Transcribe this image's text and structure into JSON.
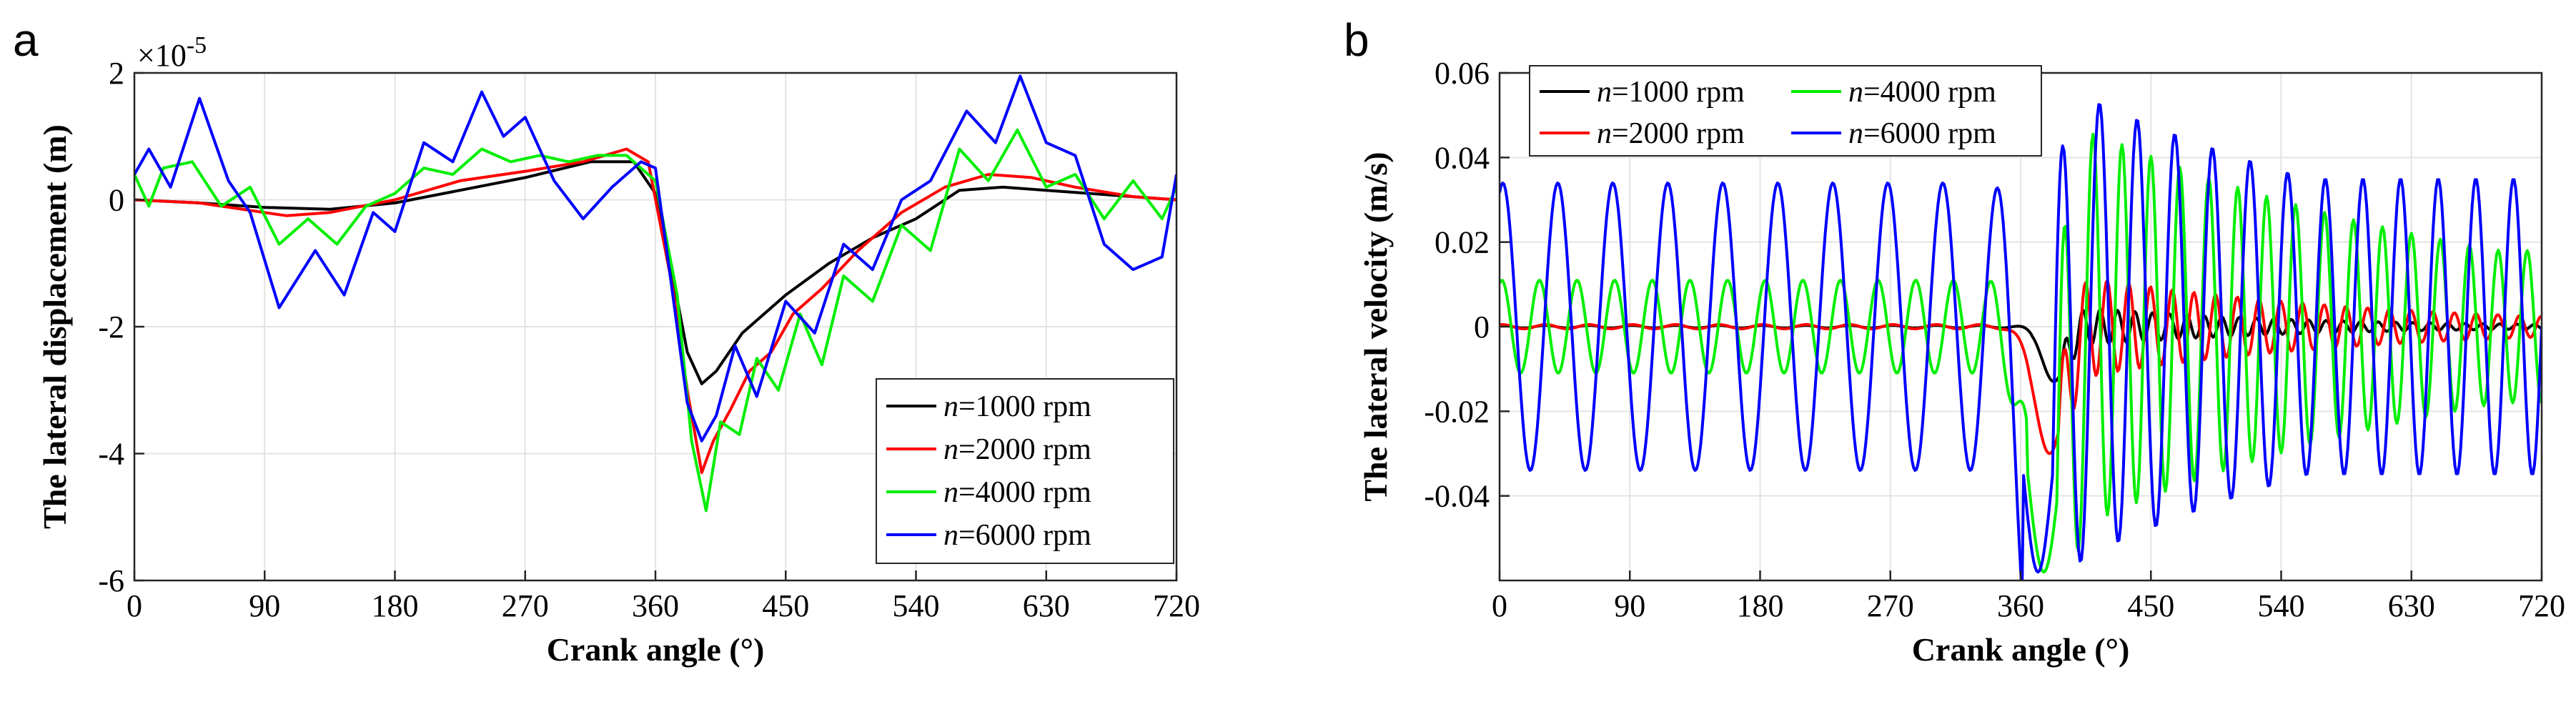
{
  "chart_data": [
    {
      "panel_label": "a",
      "type": "line",
      "xlabel": "Crank angle (°)",
      "ylabel": "The lateral displacement (m)",
      "exponent": "×10",
      "exponent_power": "-5",
      "xlim": [
        0,
        720
      ],
      "ylim": [
        -6,
        2
      ],
      "xticks": [
        "0",
        "90",
        "180",
        "270",
        "360",
        "450",
        "540",
        "630",
        "720"
      ],
      "yticks": [
        "-6",
        "-4",
        "-2",
        "0",
        "2"
      ],
      "grid": true,
      "legend_position": "bottom-right",
      "series": [
        {
          "label_var": "n",
          "label_rest": "=1000 rpm",
          "color": "#000000",
          "x": [
            0,
            45,
            90,
            135,
            180,
            225,
            270,
            315,
            345,
            360,
            372,
            382,
            392,
            402,
            420,
            450,
            480,
            510,
            540,
            570,
            600,
            630,
            660,
            690,
            720
          ],
          "y": [
            0,
            -0.05,
            -0.12,
            -0.15,
            -0.05,
            0.15,
            0.35,
            0.6,
            0.6,
            0.1,
            -1.2,
            -2.4,
            -2.9,
            -2.7,
            -2.1,
            -1.5,
            -1.0,
            -0.6,
            -0.3,
            0.15,
            0.2,
            0.15,
            0.1,
            0.05,
            0
          ]
        },
        {
          "label_var": "n",
          "label_rest": "=2000 rpm",
          "color": "#ff0000",
          "x": [
            0,
            45,
            90,
            105,
            135,
            180,
            225,
            270,
            310,
            340,
            355,
            372,
            382,
            392,
            400,
            412,
            425,
            440,
            455,
            475,
            500,
            530,
            560,
            590,
            620,
            650,
            690,
            720
          ],
          "y": [
            0,
            -0.05,
            -0.2,
            -0.25,
            -0.2,
            0,
            0.3,
            0.45,
            0.6,
            0.8,
            0.6,
            -1.4,
            -3.0,
            -4.3,
            -3.8,
            -3.3,
            -2.7,
            -2.4,
            -1.8,
            -1.4,
            -0.8,
            -0.2,
            0.2,
            0.4,
            0.35,
            0.2,
            0.05,
            0
          ]
        },
        {
          "label_var": "n",
          "label_rest": "=4000 rpm",
          "color": "#00ee00",
          "x": [
            0,
            10,
            20,
            40,
            60,
            80,
            100,
            120,
            140,
            160,
            180,
            200,
            220,
            240,
            260,
            280,
            300,
            320,
            340,
            360,
            375,
            385,
            395,
            405,
            418,
            430,
            445,
            460,
            475,
            490,
            510,
            530,
            550,
            570,
            590,
            610,
            630,
            650,
            670,
            690,
            710,
            720
          ],
          "y": [
            0.4,
            -0.1,
            0.5,
            0.6,
            -0.1,
            0.2,
            -0.7,
            -0.3,
            -0.7,
            -0.1,
            0.1,
            0.5,
            0.4,
            0.8,
            0.6,
            0.7,
            0.6,
            0.7,
            0.7,
            0.3,
            -1.5,
            -3.8,
            -4.9,
            -3.5,
            -3.7,
            -2.5,
            -3.0,
            -1.8,
            -2.6,
            -1.2,
            -1.6,
            -0.4,
            -0.8,
            0.8,
            0.3,
            1.1,
            0.2,
            0.4,
            -0.3,
            0.3,
            -0.3,
            0.2
          ]
        },
        {
          "label_var": "n",
          "label_rest": "=6000 rpm",
          "color": "#0000ff",
          "x": [
            0,
            10,
            25,
            45,
            65,
            80,
            100,
            125,
            145,
            165,
            180,
            200,
            220,
            240,
            255,
            270,
            290,
            310,
            330,
            350,
            360,
            372,
            382,
            392,
            402,
            415,
            430,
            450,
            470,
            490,
            510,
            530,
            550,
            575,
            595,
            612,
            630,
            650,
            670,
            690,
            710,
            720
          ],
          "y": [
            0.4,
            0.8,
            0.2,
            1.6,
            0.3,
            -0.2,
            -1.7,
            -0.8,
            -1.5,
            -0.2,
            -0.5,
            0.9,
            0.6,
            1.7,
            1.0,
            1.3,
            0.3,
            -0.3,
            0.2,
            0.6,
            0.5,
            -1.5,
            -3.2,
            -3.8,
            -3.4,
            -2.3,
            -3.1,
            -1.6,
            -2.1,
            -0.7,
            -1.1,
            0.0,
            0.3,
            1.4,
            0.9,
            1.95,
            0.9,
            0.7,
            -0.7,
            -1.1,
            -0.9,
            0.4
          ]
        }
      ]
    },
    {
      "panel_label": "b",
      "type": "line",
      "xlabel": "Crank angle (°)",
      "ylabel": "The lateral velocity (m/s)",
      "xlim": [
        0,
        720
      ],
      "ylim": [
        -0.06,
        0.06
      ],
      "xticks": [
        "0",
        "90",
        "180",
        "270",
        "360",
        "450",
        "540",
        "630",
        "720"
      ],
      "yticks": [
        "-0.04",
        "-0.02",
        "0",
        "0.02",
        "0.04",
        "0.06"
      ],
      "ytick_values": [
        -0.04,
        -0.02,
        0,
        0.02,
        0.04,
        0.06
      ],
      "grid": true,
      "legend_position": "top-left",
      "series": [
        {
          "label_var": "n",
          "label_rest": "=1000 rpm",
          "color": "#000000",
          "model": {
            "pre_amp": 0.0003,
            "pre_period": 30,
            "dip_center": 383,
            "dip_depth": -0.013,
            "dip_width": 8,
            "post_start": 388,
            "post_amp": 0.005,
            "post_decay": 150,
            "post_period": 12
          }
        },
        {
          "label_var": "n",
          "label_rest": "=2000 rpm",
          "color": "#ff0000",
          "model": {
            "pre_amp": 0.0005,
            "pre_period": 30,
            "dip_center": 380,
            "dip_depth": -0.03,
            "dip_width": 10,
            "post_start": 386,
            "post_amp": 0.013,
            "post_decay": 200,
            "post_period": 15
          }
        },
        {
          "label_var": "n",
          "label_rest": "=4000 rpm",
          "color": "#00ee00",
          "model": {
            "pre_amp": 0.011,
            "pre_period": 26,
            "pre_decay": 0,
            "dip_center": 376,
            "dip_depth": -0.058,
            "dip_width": 11,
            "post_start": 385,
            "post_amp": 0.05,
            "post_decay": 300,
            "post_period": 20,
            "post_floor": 0.018
          }
        },
        {
          "label_var": "n",
          "label_rest": "=6000 rpm",
          "color": "#0000ff",
          "model": {
            "pre_amp": 0.034,
            "pre_period": 38,
            "dip_center": 372,
            "dip_depth": -0.058,
            "dip_width": 10,
            "post_start": 382,
            "post_amp": 0.058,
            "post_decay": 350,
            "post_period": 26,
            "post_floor": 0.035
          }
        }
      ]
    }
  ]
}
